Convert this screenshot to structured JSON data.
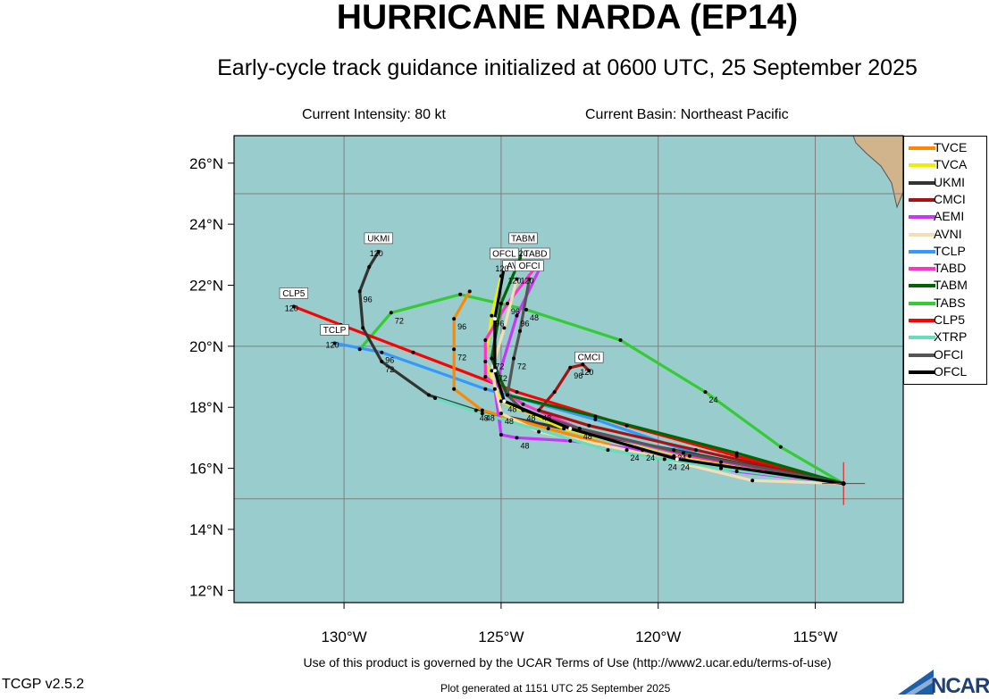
{
  "header": {
    "title": "HURRICANE NARDA (EP14)",
    "subtitle": "Early-cycle track guidance initialized at 0600 UTC, 25 September 2025",
    "intensity": "Current Intensity: 80 kt",
    "basin": "Current Basin: Northeast Pacific"
  },
  "footer": {
    "terms": "Use of this product is governed by the UCAR Terms of Use (http://www2.ucar.edu/terms-of-use)",
    "version": "TCGP v2.5.2",
    "generated": "Plot generated at 1151 UTC   25 September 2025",
    "logo": "NCAR"
  },
  "map": {
    "lon_range": [
      -133.5,
      -112.2
    ],
    "lat_range": [
      11.6,
      26.9
    ],
    "lon_ticks": [
      -130,
      -125,
      -120,
      -115
    ],
    "lon_tick_labels": [
      "130°W",
      "125°W",
      "120°W",
      "115°W"
    ],
    "lat_ticks": [
      12,
      14,
      16,
      18,
      20,
      22,
      24,
      26
    ],
    "lat_tick_labels": [
      "12°N",
      "14°N",
      "16°N",
      "18°N",
      "20°N",
      "22°N",
      "24°N",
      "26°N"
    ],
    "grid_lons": [
      -130,
      -125,
      -120,
      -115
    ],
    "grid_lats": [
      15,
      20,
      25
    ],
    "ocean_color": "#99cccc",
    "land_color": "#d2b48c",
    "current_position": [
      -114.1,
      15.5
    ]
  },
  "legend": [
    "TVCE",
    "TVCA",
    "UKMI",
    "CMCI",
    "AEMI",
    "AVNI",
    "TCLP",
    "TABD",
    "TABM",
    "TABS",
    "CLP5",
    "XTRP",
    "OFCI",
    "OFCL"
  ],
  "tracks": [
    {
      "name": "TABS",
      "color": "#33cc33",
      "points": [
        [
          -114.1,
          15.5
        ],
        [
          -116.1,
          16.7
        ],
        [
          -118.5,
          18.5
        ],
        [
          -121.2,
          20.2
        ],
        [
          -124.2,
          21.2
        ],
        [
          -126.3,
          21.7
        ],
        [
          -128.5,
          21.1
        ],
        [
          -129.5,
          19.9
        ]
      ],
      "hours": [
        null,
        null,
        "24",
        null,
        "48",
        null,
        "72",
        null
      ],
      "end_label": "",
      "end_hour": ""
    },
    {
      "name": "CLP5",
      "color": "#ff0000",
      "points": [
        [
          -114.1,
          15.5
        ],
        [
          -117.5,
          16.4
        ],
        [
          -121.0,
          17.4
        ],
        [
          -124.5,
          18.5
        ],
        [
          -127.8,
          19.8
        ],
        [
          -130.1,
          20.7
        ],
        [
          -131.6,
          21.3
        ]
      ],
      "hours": [
        null,
        null,
        null,
        null,
        null,
        null,
        null
      ],
      "end_label": "CLP5",
      "end_hour": "120"
    },
    {
      "name": "TCLP",
      "color": "#3399ff",
      "points": [
        [
          -114.1,
          15.5
        ],
        [
          -118.0,
          16.2
        ],
        [
          -122.0,
          17.6
        ],
        [
          -125.5,
          18.6
        ],
        [
          -128.8,
          19.8
        ],
        [
          -130.3,
          20.1
        ]
      ],
      "hours": [
        null,
        null,
        null,
        null,
        "96",
        null
      ],
      "end_label": "TCLP",
      "end_hour": "120"
    },
    {
      "name": "UKMI",
      "color": "#333333",
      "points": [
        [
          -114.1,
          15.5
        ],
        [
          -119.5,
          16.6
        ],
        [
          -123.0,
          17.3
        ],
        [
          -125.8,
          17.9
        ],
        [
          -127.3,
          18.4
        ],
        [
          -128.8,
          19.5
        ],
        [
          -129.4,
          20.6
        ],
        [
          -129.5,
          21.8
        ],
        [
          -129.2,
          22.6
        ],
        [
          -128.9,
          23.1
        ]
      ],
      "hours": [
        null,
        "24",
        null,
        "48",
        null,
        "72",
        null,
        "96",
        null,
        null
      ],
      "end_label": "UKMI",
      "end_hour": "120"
    },
    {
      "name": "TVCE",
      "color": "#ff8800",
      "points": [
        [
          -114.1,
          15.5
        ],
        [
          -119.8,
          16.3
        ],
        [
          -123.5,
          17.3
        ],
        [
          -125.6,
          17.9
        ],
        [
          -126.5,
          18.6
        ],
        [
          -126.5,
          19.9
        ],
        [
          -126.5,
          20.9
        ],
        [
          -126.0,
          21.8
        ]
      ],
      "hours": [
        null,
        "24",
        null,
        "48",
        null,
        "72",
        "96",
        null
      ],
      "end_label": "",
      "end_hour": ""
    },
    {
      "name": "TVCA",
      "color": "#eeee00",
      "points": [
        [
          -114.1,
          15.5
        ],
        [
          -119.5,
          16.4
        ],
        [
          -123.0,
          17.3
        ],
        [
          -125.0,
          18.2
        ],
        [
          -125.5,
          19.5
        ],
        [
          -125.3,
          21.0
        ],
        [
          -125.0,
          22.3
        ]
      ],
      "hours": [
        null,
        null,
        null,
        null,
        null,
        "96",
        null
      ],
      "end_label": "",
      "end_hour": ""
    },
    {
      "name": "TABD",
      "color": "#ff33cc",
      "points": [
        [
          -114.1,
          15.5
        ],
        [
          -119.0,
          16.4
        ],
        [
          -122.5,
          17.3
        ],
        [
          -124.3,
          18.1
        ],
        [
          -125.5,
          19.0
        ],
        [
          -125.5,
          20.2
        ],
        [
          -124.8,
          21.4
        ],
        [
          -123.9,
          22.6
        ]
      ],
      "hours": [
        null,
        null,
        "48",
        null,
        null,
        null,
        "96",
        null
      ],
      "end_label": "TABD",
      "end_hour": "120"
    },
    {
      "name": "AEMI",
      "color": "#cc33ff",
      "points": [
        [
          -114.1,
          15.5
        ],
        [
          -117.5,
          15.9
        ],
        [
          -120.5,
          16.6
        ],
        [
          -122.8,
          16.9
        ],
        [
          -124.5,
          17.0
        ],
        [
          -125.0,
          17.1
        ],
        [
          -125.2,
          18.6
        ],
        [
          -124.5,
          21.0
        ],
        [
          -123.7,
          22.7
        ]
      ],
      "hours": [
        null,
        null,
        "24",
        null,
        "48",
        null,
        null,
        "96",
        null
      ],
      "end_label": "",
      "end_hour": ""
    },
    {
      "name": "AVNI",
      "color": "#f5deb3",
      "points": [
        [
          -114.1,
          15.5
        ],
        [
          -117.0,
          15.6
        ],
        [
          -121.0,
          16.6
        ],
        [
          -123.8,
          17.2
        ],
        [
          -125.0,
          17.8
        ],
        [
          -125.3,
          19.2
        ],
        [
          -124.9,
          20.6
        ],
        [
          -124.5,
          22.2
        ]
      ],
      "hours": [
        null,
        null,
        "24",
        null,
        "48",
        null,
        null,
        null
      ],
      "end_label": "AVNI",
      "end_hour": "120"
    },
    {
      "name": "CMCI",
      "color": "#aa1111",
      "points": [
        [
          -114.1,
          15.5
        ],
        [
          -118.8,
          16.6
        ],
        [
          -122.2,
          17.4
        ],
        [
          -123.8,
          17.9
        ],
        [
          -123.3,
          18.5
        ],
        [
          -122.8,
          19.3
        ],
        [
          -122.4,
          19.4
        ],
        [
          -122.2,
          19.2
        ]
      ],
      "hours": [
        null,
        null,
        null,
        "48",
        null,
        "96",
        null,
        null
      ],
      "end_label": "CMCI",
      "end_hour": "120"
    },
    {
      "name": "TABM",
      "color": "#006600",
      "points": [
        [
          -114.1,
          15.5
        ],
        [
          -117.5,
          16.5
        ],
        [
          -122.0,
          17.7
        ],
        [
          -124.8,
          18.4
        ],
        [
          -125.3,
          19.6
        ],
        [
          -125.0,
          21.4
        ],
        [
          -124.3,
          23.1
        ]
      ],
      "hours": [
        null,
        null,
        null,
        null,
        "72",
        null,
        null
      ],
      "end_label": "TABM",
      "end_hour": "120"
    },
    {
      "name": "XTRP",
      "color": "#66ddbb",
      "points": [
        [
          -114.1,
          15.5
        ],
        [
          -118.0,
          16.0
        ],
        [
          -121.6,
          16.6
        ],
        [
          -125.6,
          17.8
        ],
        [
          -127.1,
          18.3
        ]
      ],
      "hours": [
        null,
        null,
        null,
        null,
        null
      ],
      "end_label": "",
      "end_hour": ""
    },
    {
      "name": "OFCI",
      "color": "#555555",
      "points": [
        [
          -114.1,
          15.5
        ],
        [
          -119.2,
          16.5
        ],
        [
          -122.5,
          17.3
        ],
        [
          -124.3,
          17.9
        ],
        [
          -124.8,
          18.4
        ],
        [
          -124.6,
          19.6
        ],
        [
          -124.4,
          20.5
        ],
        [
          -124.1,
          22.2
        ]
      ],
      "hours": [
        null,
        null,
        null,
        "48",
        null,
        "72",
        null,
        null
      ],
      "end_label": "OFCI",
      "end_hour": "120"
    },
    {
      "name": "OFCL",
      "color": "#000000",
      "points": [
        [
          -114.1,
          15.5
        ],
        [
          -119.4,
          16.3
        ],
        [
          -122.8,
          17.3
        ],
        [
          -124.9,
          18.2
        ],
        [
          -125.2,
          19.2
        ],
        [
          -125.2,
          20.9
        ],
        [
          -124.9,
          22.6
        ]
      ],
      "hours": [
        null,
        "24",
        null,
        "48",
        "72",
        null,
        null
      ],
      "end_label": "OFCL",
      "end_hour": "120"
    }
  ]
}
